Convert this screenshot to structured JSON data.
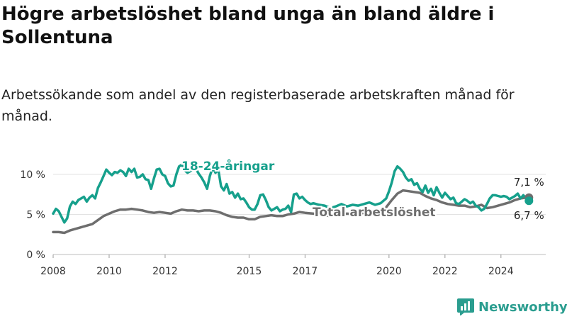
{
  "title": "Högre arbetslöshet bland unga än bland äldre i Sollentuna",
  "subtitle": "Arbetssökande som andel av den registerbaserade arbetskraften månad för månad.",
  "brand": {
    "name": "Newsworthy",
    "color": "#2a9d8f"
  },
  "chart_data": {
    "type": "line",
    "xlim": [
      2008,
      2025.6
    ],
    "ylim": [
      0,
      10
    ],
    "xticks": [
      "2008",
      "2010",
      "2012",
      "2015",
      "2017",
      "2020",
      "2022",
      "2024"
    ],
    "yticks": [
      "0 %",
      "5 %",
      "10 %"
    ],
    "grid": true,
    "series": [
      {
        "name": "18-24-åringar",
        "color": "#16a08c",
        "end_label": "6,7 %",
        "points": [
          [
            2008.0,
            5.1
          ],
          [
            2008.1,
            5.7
          ],
          [
            2008.2,
            5.4
          ],
          [
            2008.3,
            4.7
          ],
          [
            2008.4,
            4.0
          ],
          [
            2008.5,
            4.5
          ],
          [
            2008.6,
            6.0
          ],
          [
            2008.7,
            6.6
          ],
          [
            2008.8,
            6.3
          ],
          [
            2008.9,
            6.8
          ],
          [
            2009.0,
            7.0
          ],
          [
            2009.1,
            7.2
          ],
          [
            2009.2,
            6.6
          ],
          [
            2009.3,
            7.1
          ],
          [
            2009.4,
            7.4
          ],
          [
            2009.5,
            7.0
          ],
          [
            2009.6,
            8.3
          ],
          [
            2009.7,
            9.0
          ],
          [
            2009.8,
            9.8
          ],
          [
            2009.9,
            10.6
          ],
          [
            2010.0,
            10.2
          ],
          [
            2010.1,
            9.9
          ],
          [
            2010.2,
            10.3
          ],
          [
            2010.3,
            10.2
          ],
          [
            2010.4,
            10.5
          ],
          [
            2010.5,
            10.3
          ],
          [
            2010.6,
            9.8
          ],
          [
            2010.7,
            10.7
          ],
          [
            2010.8,
            10.3
          ],
          [
            2010.9,
            10.7
          ],
          [
            2011.0,
            9.6
          ],
          [
            2011.1,
            9.7
          ],
          [
            2011.2,
            10.0
          ],
          [
            2011.3,
            9.4
          ],
          [
            2011.4,
            9.3
          ],
          [
            2011.5,
            8.2
          ],
          [
            2011.6,
            9.5
          ],
          [
            2011.7,
            10.6
          ],
          [
            2011.8,
            10.7
          ],
          [
            2011.9,
            10.0
          ],
          [
            2012.0,
            9.8
          ],
          [
            2012.1,
            8.9
          ],
          [
            2012.2,
            8.5
          ],
          [
            2012.3,
            8.6
          ],
          [
            2012.4,
            10.0
          ],
          [
            2012.5,
            11.0
          ],
          [
            2012.6,
            11.2
          ],
          [
            2012.7,
            10.5
          ],
          [
            2012.8,
            10.2
          ],
          [
            2012.9,
            10.4
          ],
          [
            2013.0,
            10.6
          ],
          [
            2013.1,
            10.7
          ],
          [
            2013.2,
            10.1
          ],
          [
            2013.3,
            9.6
          ],
          [
            2013.4,
            9.0
          ],
          [
            2013.5,
            8.2
          ],
          [
            2013.6,
            9.8
          ],
          [
            2013.7,
            10.9
          ],
          [
            2013.8,
            10.2
          ],
          [
            2013.9,
            10.6
          ],
          [
            2014.0,
            8.5
          ],
          [
            2014.1,
            8.0
          ],
          [
            2014.2,
            8.8
          ],
          [
            2014.3,
            7.6
          ],
          [
            2014.4,
            7.8
          ],
          [
            2014.5,
            7.1
          ],
          [
            2014.6,
            7.6
          ],
          [
            2014.7,
            6.9
          ],
          [
            2014.8,
            7.0
          ],
          [
            2014.9,
            6.5
          ],
          [
            2015.0,
            5.9
          ],
          [
            2015.1,
            5.6
          ],
          [
            2015.2,
            5.6
          ],
          [
            2015.3,
            6.3
          ],
          [
            2015.4,
            7.4
          ],
          [
            2015.5,
            7.5
          ],
          [
            2015.6,
            6.8
          ],
          [
            2015.7,
            5.9
          ],
          [
            2015.8,
            5.5
          ],
          [
            2015.9,
            5.7
          ],
          [
            2016.0,
            5.9
          ],
          [
            2016.1,
            5.4
          ],
          [
            2016.2,
            5.6
          ],
          [
            2016.3,
            5.7
          ],
          [
            2016.4,
            6.1
          ],
          [
            2016.5,
            5.3
          ],
          [
            2016.6,
            7.5
          ],
          [
            2016.7,
            7.6
          ],
          [
            2016.8,
            7.0
          ],
          [
            2016.9,
            7.2
          ],
          [
            2017.0,
            6.8
          ],
          [
            2017.1,
            6.5
          ],
          [
            2017.2,
            6.3
          ],
          [
            2017.3,
            6.4
          ],
          [
            2017.5,
            6.2
          ],
          [
            2017.7,
            6.1
          ],
          [
            2017.9,
            5.8
          ],
          [
            2018.1,
            6.0
          ],
          [
            2018.3,
            6.3
          ],
          [
            2018.5,
            6.0
          ],
          [
            2018.7,
            6.2
          ],
          [
            2018.9,
            6.1
          ],
          [
            2019.1,
            6.3
          ],
          [
            2019.3,
            6.5
          ],
          [
            2019.5,
            6.2
          ],
          [
            2019.7,
            6.4
          ],
          [
            2019.9,
            7.0
          ],
          [
            2020.0,
            7.9
          ],
          [
            2020.1,
            9.0
          ],
          [
            2020.2,
            10.4
          ],
          [
            2020.3,
            11.0
          ],
          [
            2020.4,
            10.7
          ],
          [
            2020.5,
            10.3
          ],
          [
            2020.6,
            9.6
          ],
          [
            2020.7,
            9.2
          ],
          [
            2020.8,
            9.4
          ],
          [
            2020.9,
            8.7
          ],
          [
            2021.0,
            8.9
          ],
          [
            2021.1,
            8.2
          ],
          [
            2021.2,
            7.8
          ],
          [
            2021.3,
            8.6
          ],
          [
            2021.4,
            7.7
          ],
          [
            2021.5,
            8.2
          ],
          [
            2021.6,
            7.4
          ],
          [
            2021.7,
            8.4
          ],
          [
            2021.8,
            7.7
          ],
          [
            2021.9,
            7.1
          ],
          [
            2022.0,
            7.7
          ],
          [
            2022.1,
            7.3
          ],
          [
            2022.2,
            6.9
          ],
          [
            2022.3,
            7.1
          ],
          [
            2022.4,
            6.4
          ],
          [
            2022.5,
            6.3
          ],
          [
            2022.6,
            6.6
          ],
          [
            2022.7,
            6.9
          ],
          [
            2022.8,
            6.7
          ],
          [
            2022.9,
            6.4
          ],
          [
            2023.0,
            6.6
          ],
          [
            2023.1,
            6.1
          ],
          [
            2023.2,
            5.9
          ],
          [
            2023.3,
            5.5
          ],
          [
            2023.4,
            5.7
          ],
          [
            2023.5,
            6.3
          ],
          [
            2023.6,
            7.0
          ],
          [
            2023.7,
            7.4
          ],
          [
            2023.8,
            7.4
          ],
          [
            2023.9,
            7.3
          ],
          [
            2024.0,
            7.2
          ],
          [
            2024.1,
            7.3
          ],
          [
            2024.2,
            7.2
          ],
          [
            2024.3,
            6.9
          ],
          [
            2024.4,
            7.1
          ],
          [
            2024.5,
            7.3
          ],
          [
            2024.6,
            7.6
          ],
          [
            2024.7,
            7.0
          ],
          [
            2024.8,
            7.4
          ],
          [
            2024.9,
            7.0
          ],
          [
            2025.0,
            6.7
          ]
        ]
      },
      {
        "name": "Total arbetslöshet",
        "color": "#6e6e6e",
        "end_label": "7,1 %",
        "points": [
          [
            2008.0,
            2.8
          ],
          [
            2008.2,
            2.8
          ],
          [
            2008.4,
            2.7
          ],
          [
            2008.6,
            3.0
          ],
          [
            2008.8,
            3.2
          ],
          [
            2009.0,
            3.4
          ],
          [
            2009.2,
            3.6
          ],
          [
            2009.4,
            3.8
          ],
          [
            2009.6,
            4.3
          ],
          [
            2009.8,
            4.8
          ],
          [
            2010.0,
            5.1
          ],
          [
            2010.2,
            5.4
          ],
          [
            2010.4,
            5.6
          ],
          [
            2010.6,
            5.6
          ],
          [
            2010.8,
            5.7
          ],
          [
            2011.0,
            5.6
          ],
          [
            2011.2,
            5.5
          ],
          [
            2011.4,
            5.3
          ],
          [
            2011.6,
            5.2
          ],
          [
            2011.8,
            5.3
          ],
          [
            2012.0,
            5.2
          ],
          [
            2012.2,
            5.1
          ],
          [
            2012.4,
            5.4
          ],
          [
            2012.6,
            5.6
          ],
          [
            2012.8,
            5.5
          ],
          [
            2013.0,
            5.5
          ],
          [
            2013.2,
            5.4
          ],
          [
            2013.4,
            5.5
          ],
          [
            2013.6,
            5.5
          ],
          [
            2013.8,
            5.4
          ],
          [
            2014.0,
            5.2
          ],
          [
            2014.2,
            4.9
          ],
          [
            2014.4,
            4.7
          ],
          [
            2014.6,
            4.6
          ],
          [
            2014.8,
            4.6
          ],
          [
            2015.0,
            4.4
          ],
          [
            2015.2,
            4.4
          ],
          [
            2015.4,
            4.7
          ],
          [
            2015.6,
            4.8
          ],
          [
            2015.8,
            4.9
          ],
          [
            2016.0,
            4.8
          ],
          [
            2016.2,
            4.8
          ],
          [
            2016.4,
            5.0
          ],
          [
            2016.6,
            5.1
          ],
          [
            2016.8,
            5.3
          ],
          [
            2017.0,
            5.2
          ],
          [
            2017.3,
            5.1
          ],
          [
            2017.6,
            5.0
          ],
          [
            2017.9,
            4.8
          ],
          [
            2018.2,
            5.0
          ],
          [
            2018.5,
            5.1
          ],
          [
            2018.8,
            5.0
          ],
          [
            2019.1,
            5.2
          ],
          [
            2019.4,
            5.3
          ],
          [
            2019.7,
            5.5
          ],
          [
            2019.9,
            5.9
          ],
          [
            2020.1,
            6.8
          ],
          [
            2020.3,
            7.6
          ],
          [
            2020.5,
            8.0
          ],
          [
            2020.7,
            7.9
          ],
          [
            2020.9,
            7.8
          ],
          [
            2021.1,
            7.7
          ],
          [
            2021.3,
            7.3
          ],
          [
            2021.5,
            7.0
          ],
          [
            2021.7,
            6.8
          ],
          [
            2021.9,
            6.5
          ],
          [
            2022.1,
            6.3
          ],
          [
            2022.3,
            6.2
          ],
          [
            2022.5,
            6.1
          ],
          [
            2022.7,
            6.1
          ],
          [
            2022.9,
            5.9
          ],
          [
            2023.1,
            6.0
          ],
          [
            2023.3,
            6.2
          ],
          [
            2023.5,
            5.8
          ],
          [
            2023.7,
            5.9
          ],
          [
            2023.9,
            6.1
          ],
          [
            2024.1,
            6.3
          ],
          [
            2024.3,
            6.5
          ],
          [
            2024.5,
            6.8
          ],
          [
            2024.7,
            7.0
          ],
          [
            2024.9,
            7.1
          ],
          [
            2025.0,
            7.1
          ]
        ]
      }
    ]
  }
}
